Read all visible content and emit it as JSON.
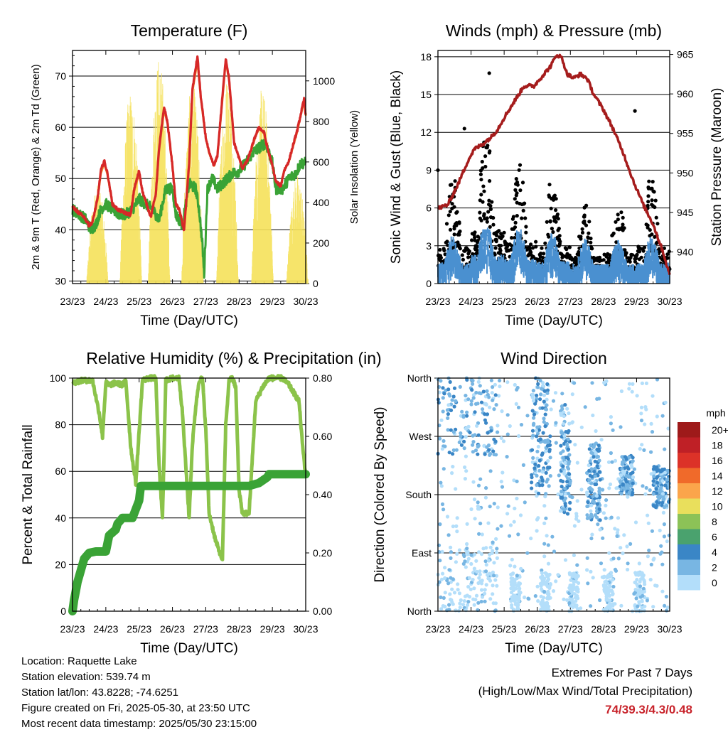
{
  "footer": {
    "location": "Location: Raquette Lake",
    "elevation": "Station elevation: 539.74 m",
    "latlon": "Station lat/lon: 43.8228; -74.6251",
    "created": "Figure created on Fri, 2025-05-30, at 23:50 UTC",
    "recent": "Most recent data timestamp: 2025/05/30 23:15:00"
  },
  "extremes": {
    "title": "Extremes For Past 7 Days",
    "subtitle": "(High/Low/Max Wind/Total Precipitation)",
    "values": "74/39.3/4.3/0.48",
    "color": "#c8232b"
  },
  "chart_data": [
    {
      "type": "line",
      "title": "Temperature (F)",
      "xlabel": "Time (Day/UTC)",
      "ylabel": "2m & 9m T (Red, Orange) & 2m Td (Green)",
      "y2label": "Solar Insolation (Yellow)",
      "x_ticks": [
        "23/23",
        "24/23",
        "25/23",
        "26/23",
        "27/23",
        "28/23",
        "29/23",
        "30/23"
      ],
      "xlim": [
        0,
        7
      ],
      "ylim": [
        29.5,
        75
      ],
      "y_ticks": [
        "30",
        "40",
        "50",
        "60",
        "70"
      ],
      "y2lim": [
        0,
        1150
      ],
      "y2_ticks": [
        "0",
        "200",
        "400",
        "600",
        "800",
        "1000"
      ],
      "grid": "horizontal",
      "series": [
        {
          "role": "2m T",
          "color": "#d62828",
          "axis": "left",
          "x": [
            0,
            0.15,
            0.35,
            0.5,
            0.6,
            0.75,
            0.85,
            0.95,
            1.05,
            1.2,
            1.35,
            1.5,
            1.6,
            1.75,
            1.85,
            2.0,
            2.1,
            2.25,
            2.35,
            2.5,
            2.6,
            2.75,
            2.85,
            3.0,
            3.1,
            3.2,
            3.35,
            3.5,
            3.6,
            3.75,
            3.85,
            4.0,
            4.1,
            4.25,
            4.35,
            4.5,
            4.6,
            4.7,
            4.85,
            5.0,
            5.1,
            5.25,
            5.4,
            5.5,
            5.6,
            5.75,
            5.85,
            6.0,
            6.1,
            6.25,
            6.35,
            6.5,
            6.6,
            6.75,
            6.85,
            6.95,
            7.0
          ],
          "y": [
            44.5,
            43.5,
            42.5,
            40.8,
            41.5,
            46,
            51.5,
            53.5,
            51,
            45,
            44,
            43.5,
            43.2,
            43,
            48,
            51.5,
            47.5,
            44.5,
            42.5,
            47,
            56,
            64,
            61,
            52.5,
            45,
            44,
            39.8,
            53,
            67.5,
            73.8,
            66,
            58,
            55,
            52.5,
            54.5,
            66,
            73.5,
            69.5,
            57,
            54,
            52,
            53.5,
            56.5,
            58.5,
            60,
            59,
            56,
            52.5,
            49.5,
            48.5,
            51.5,
            53.5,
            56,
            59.5,
            62.5,
            65.5,
            62.5
          ]
        },
        {
          "role": "9m T",
          "color": "#f08c28",
          "axis": "left",
          "x": [
            0,
            0.15,
            0.35,
            0.5,
            0.6,
            0.75,
            0.85,
            0.95,
            1.05,
            1.2,
            1.35,
            1.5,
            1.6,
            1.75,
            1.85,
            2.0,
            2.1,
            2.25,
            2.35,
            2.5,
            2.6,
            2.75,
            2.85,
            3.0,
            3.1,
            3.2,
            3.35,
            3.5,
            3.6,
            3.75,
            3.85,
            4.0,
            4.1,
            4.25,
            4.35,
            4.5,
            4.6,
            4.7,
            4.85,
            5.0,
            5.1,
            5.25,
            5.4,
            5.5,
            5.6,
            5.75,
            5.85,
            6.0,
            6.1,
            6.25,
            6.35,
            6.5,
            6.6,
            6.75,
            6.85,
            6.95,
            7.0
          ],
          "y": [
            44.3,
            43.4,
            42.4,
            40.9,
            41.4,
            45.8,
            51,
            53,
            50.8,
            45,
            44,
            43.4,
            43.2,
            43,
            47.5,
            51,
            47.3,
            44.5,
            42.8,
            46.8,
            55.5,
            63.5,
            60.8,
            52.5,
            45.2,
            44.2,
            40.2,
            52.5,
            67,
            73,
            65.8,
            58,
            55,
            52.5,
            54.3,
            65.5,
            73,
            69.2,
            57,
            54,
            52,
            53.4,
            56.3,
            58.3,
            59.8,
            58.8,
            55.8,
            52.4,
            49.6,
            48.6,
            51.4,
            53.4,
            55.8,
            59.3,
            62.3,
            65.2,
            62.4
          ]
        },
        {
          "role": "2m Td",
          "color": "#3aa336",
          "axis": "left",
          "x": [
            0,
            0.2,
            0.4,
            0.55,
            0.7,
            0.85,
            1.0,
            1.2,
            1.4,
            1.6,
            1.8,
            2.0,
            2.2,
            2.4,
            2.6,
            2.8,
            3.0,
            3.1,
            3.2,
            3.3,
            3.4,
            3.5,
            3.7,
            3.8,
            3.9,
            3.95,
            4.05,
            4.2,
            4.35,
            4.5,
            4.65,
            4.8,
            5.0,
            5.2,
            5.4,
            5.6,
            5.8,
            6.0,
            6.1,
            6.3,
            6.5,
            6.7,
            6.85,
            7.0
          ],
          "y": [
            44,
            43,
            42,
            40,
            41,
            44,
            45,
            44,
            43,
            43,
            44,
            46,
            45,
            44,
            42,
            48,
            48,
            43,
            42,
            41,
            45,
            49,
            48,
            44,
            37,
            31,
            48,
            50,
            48,
            49,
            50,
            51,
            51.5,
            53,
            55,
            56,
            57,
            53,
            48,
            48,
            50,
            51,
            53,
            53
          ]
        },
        {
          "role": "Solar Insolation",
          "color": "#f5e15a",
          "axis": "right",
          "day_peaks": [
            [
              0.75,
              500
            ],
            [
              1.75,
              960
            ],
            [
              2.6,
              1130
            ],
            [
              3.6,
              1000
            ],
            [
              4.65,
              1040
            ],
            [
              5.7,
              970
            ],
            [
              6.75,
              540
            ]
          ]
        }
      ]
    },
    {
      "type": "scatter",
      "title": "Winds (mph) & Pressure (mb)",
      "xlabel": "Time (Day/UTC)",
      "ylabel": "Sonic Wind & Gust (Blue, Black)",
      "y2label": "Station Pressure (Maroon)",
      "x_ticks": [
        "23/23",
        "24/23",
        "25/23",
        "26/23",
        "27/23",
        "28/23",
        "29/23",
        "30/23"
      ],
      "xlim": [
        0,
        7
      ],
      "ylim": [
        0,
        18.5
      ],
      "y_ticks": [
        "0",
        "3",
        "6",
        "9",
        "12",
        "15",
        "18"
      ],
      "y2lim": [
        936,
        965.5
      ],
      "y2_ticks": [
        "940",
        "945",
        "950",
        "955",
        "960",
        "965"
      ],
      "grid": "horizontal",
      "series": [
        {
          "role": "Sonic Wind",
          "color": "#4a90d0",
          "level_by_day": [
            1.6,
            2.2,
            1.9,
            1.7,
            1.5,
            1.5,
            1.6
          ]
        },
        {
          "role": "Gust",
          "color": "#000000",
          "level_by_day": [
            3.5,
            5.0,
            4.0,
            3.5,
            2.5,
            2.8,
            3.5
          ],
          "outliers": [
            [
              0,
              9.0
            ],
            [
              0.8,
              12.3
            ],
            [
              1.55,
              16.7
            ],
            [
              5.95,
              13.7
            ]
          ]
        },
        {
          "role": "Station Pressure",
          "color": "#a51c1c",
          "x": [
            0,
            0.3,
            0.6,
            0.9,
            1.1,
            1.3,
            1.6,
            1.8,
            2.0,
            2.3,
            2.6,
            2.9,
            3.1,
            3.4,
            3.6,
            3.75,
            3.9,
            4.1,
            4.3,
            4.5,
            4.7,
            5.0,
            5.3,
            5.6,
            5.9,
            6.2,
            6.5,
            6.8,
            7.0
          ],
          "y": [
            945.5,
            946,
            948.5,
            951.5,
            953,
            953.5,
            954.5,
            955.5,
            957,
            959,
            961,
            961,
            962,
            963.5,
            965,
            964.5,
            962.5,
            962,
            962.5,
            962,
            960,
            958,
            955.5,
            952.5,
            949,
            946,
            943.5,
            940,
            937
          ]
        }
      ]
    },
    {
      "type": "line",
      "title": "Relative Humidity (%) & Precipitation (in)",
      "xlabel": "Time (Day/UTC)",
      "ylabel": "Percent & Total Rainfall",
      "x_ticks": [
        "23/23",
        "24/23",
        "25/23",
        "26/23",
        "27/23",
        "28/23",
        "29/23",
        "30/23"
      ],
      "xlim": [
        0,
        7
      ],
      "ylim": [
        0,
        100
      ],
      "y_ticks": [
        "0",
        "20",
        "40",
        "60",
        "80",
        "100"
      ],
      "y2lim": [
        0,
        0.8
      ],
      "y2_ticks": [
        "0.00",
        "0.20",
        "0.40",
        "0.60",
        "0.80"
      ],
      "grid": "horizontal",
      "series": [
        {
          "role": "Relative Humidity",
          "color": "#8bc34a",
          "axis": "left",
          "x": [
            0,
            0.3,
            0.6,
            0.7,
            0.8,
            0.9,
            1.0,
            1.1,
            1.3,
            1.5,
            1.6,
            1.75,
            1.9,
            2.0,
            2.1,
            2.3,
            2.5,
            2.6,
            2.7,
            2.8,
            3.0,
            3.2,
            3.3,
            3.5,
            3.6,
            3.7,
            3.8,
            3.9,
            4.0,
            4.1,
            4.3,
            4.5,
            4.6,
            4.7,
            4.8,
            4.9,
            5.0,
            5.1,
            5.3,
            5.5,
            5.7,
            5.9,
            6.1,
            6.3,
            6.5,
            6.8,
            6.9,
            7.0
          ],
          "y": [
            98,
            99,
            99,
            92,
            85,
            75,
            98,
            97,
            98,
            97,
            99,
            70,
            55,
            77,
            99,
            100,
            100,
            62,
            40,
            99,
            100,
            100,
            85,
            40,
            72,
            88,
            99,
            100,
            78,
            42,
            30,
            22,
            80,
            99,
            100,
            96,
            52,
            42,
            42,
            90,
            96,
            100,
            100,
            100,
            97,
            90,
            72,
            58
          ]
        },
        {
          "role": "Total Rainfall",
          "color": "#3aa336",
          "axis": "right",
          "x": [
            0,
            0.05,
            0.1,
            0.15,
            0.25,
            0.35,
            0.5,
            0.7,
            1.0,
            1.1,
            1.2,
            1.3,
            1.35,
            1.5,
            1.8,
            1.9,
            2.0,
            2.05,
            3.0,
            4.0,
            5.0,
            5.3,
            5.6,
            5.85,
            5.9,
            6.0,
            7.0
          ],
          "y": [
            0,
            0.04,
            0.07,
            0.1,
            0.14,
            0.18,
            0.2,
            0.205,
            0.205,
            0.26,
            0.27,
            0.28,
            0.3,
            0.32,
            0.32,
            0.35,
            0.38,
            0.43,
            0.43,
            0.43,
            0.43,
            0.43,
            0.44,
            0.46,
            0.47,
            0.47,
            0.47
          ]
        }
      ]
    },
    {
      "type": "scatter",
      "title": "Wind Direction",
      "xlabel": "Time (Day/UTC)",
      "ylabel": "Direction (Colored By Speed)",
      "x_ticks": [
        "23/23",
        "24/23",
        "25/23",
        "26/23",
        "27/23",
        "28/23",
        "29/23",
        "30/23"
      ],
      "xlim": [
        0,
        7
      ],
      "ylim": [
        0,
        360
      ],
      "y_ticks": [
        "North",
        "East",
        "South",
        "West",
        "North"
      ],
      "grid": "horizontal",
      "colorbar": {
        "title": "mph",
        "labels": [
          "20+",
          "18",
          "16",
          "14",
          "12",
          "10",
          "8",
          "6",
          "4",
          "2",
          "0"
        ],
        "colors": [
          "#9e1a1a",
          "#bf2026",
          "#dc3228",
          "#f06a2a",
          "#fba54b",
          "#e9df5c",
          "#8cc257",
          "#4aa26e",
          "#3a86c6",
          "#78b6e3",
          "#b3defa"
        ]
      },
      "clusters": [
        {
          "day_range": [
            0.0,
            1.8
          ],
          "direction_range": [
            240,
            360
          ],
          "speed": "2-4"
        },
        {
          "day_range": [
            0.0,
            1.8
          ],
          "direction_range": [
            0,
            100
          ],
          "speed": "0-2"
        },
        {
          "day_range": [
            2.8,
            3.4
          ],
          "direction_range": [
            180,
            360
          ],
          "speed": "2-4"
        },
        {
          "day_range": [
            3.7,
            4.0
          ],
          "direction_range": [
            150,
            320
          ],
          "speed": "2-4"
        },
        {
          "day_range": [
            4.5,
            4.9
          ],
          "direction_range": [
            140,
            260
          ],
          "speed": "2-4"
        },
        {
          "day_range": [
            5.5,
            5.9
          ],
          "direction_range": [
            180,
            240
          ],
          "speed": "2-4"
        },
        {
          "day_range": [
            6.5,
            7.0
          ],
          "direction_range": [
            160,
            225
          ],
          "speed": "2-4"
        }
      ]
    }
  ]
}
